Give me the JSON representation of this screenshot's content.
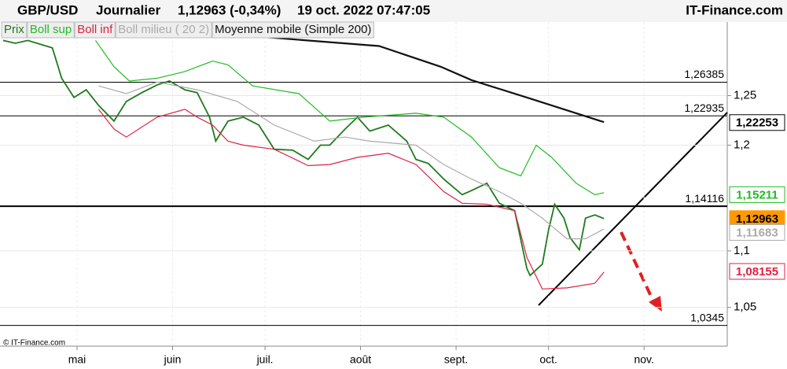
{
  "header": {
    "symbol": "GBP/USD",
    "period": "Journalier",
    "quote": "1,12963 (-0,34%)",
    "datetime": "19 oct. 2022 07:47:05",
    "site": "IT-Finance.com"
  },
  "footer": "© IT-Finance.com",
  "chart_data": {
    "type": "line",
    "log_scale": true,
    "grid": true,
    "ylim": [
      1.017,
      1.328
    ],
    "yticks": [
      {
        "value": 1.25,
        "label": "1,25"
      },
      {
        "value": 1.2,
        "label": "1,2"
      },
      {
        "value": 1.1,
        "label": "1,1"
      },
      {
        "value": 1.05,
        "label": "1,05"
      }
    ],
    "xlim": [
      96,
      332
    ],
    "xticks": [
      {
        "value": 121,
        "label": "mai"
      },
      {
        "value": 152,
        "label": "juin"
      },
      {
        "value": 182,
        "label": "juil."
      },
      {
        "value": 213,
        "label": "août"
      },
      {
        "value": 244,
        "label": "sept."
      },
      {
        "value": 274,
        "label": "oct."
      },
      {
        "value": 305,
        "label": "nov."
      }
    ],
    "series": [
      {
        "name": "Prix",
        "color": "#1e7a1e",
        "x": [
          97,
          101,
          105,
          113,
          116,
          120,
          124,
          128,
          133,
          137,
          142,
          147,
          151,
          156,
          160,
          164,
          166,
          170,
          175,
          180,
          185,
          191,
          196,
          200,
          203,
          208,
          212,
          216,
          222,
          228,
          231,
          235,
          240,
          246,
          249,
          254,
          258,
          263,
          267,
          268,
          272,
          274,
          276,
          279,
          281,
          284,
          286,
          289,
          292
        ],
        "values": [
          1.308,
          1.305,
          1.308,
          1.3,
          1.268,
          1.248,
          1.256,
          1.24,
          1.224,
          1.244,
          1.253,
          1.261,
          1.265,
          1.256,
          1.253,
          1.228,
          1.204,
          1.224,
          1.228,
          1.22,
          1.196,
          1.195,
          1.186,
          1.2,
          1.2,
          1.216,
          1.228,
          1.214,
          1.22,
          1.204,
          1.186,
          1.182,
          1.167,
          1.152,
          1.156,
          1.163,
          1.144,
          1.137,
          1.084,
          1.078,
          1.088,
          1.119,
          1.143,
          1.13,
          1.112,
          1.101,
          1.13,
          1.133,
          1.12963
        ]
      },
      {
        "name": "Boll sup",
        "color": "#22bb22",
        "x": [
          127,
          133,
          138,
          147,
          156,
          165,
          170,
          178,
          193,
          203,
          214,
          231,
          240,
          249,
          258,
          265,
          270,
          275,
          283,
          289,
          292
        ],
        "values": [
          1.308,
          1.28,
          1.265,
          1.268,
          1.275,
          1.286,
          1.282,
          1.26,
          1.252,
          1.224,
          1.228,
          1.232,
          1.228,
          1.208,
          1.178,
          1.17,
          1.2,
          1.188,
          1.163,
          1.152,
          1.154
        ]
      },
      {
        "name": "Boll inf",
        "color": "#dd2244",
        "x": [
          128,
          133,
          137,
          147,
          156,
          160,
          165,
          170,
          175,
          185,
          196,
          203,
          212,
          222,
          231,
          240,
          246,
          254,
          263,
          267,
          272,
          280,
          289,
          292
        ],
        "values": [
          1.236,
          1.216,
          1.208,
          1.228,
          1.236,
          1.228,
          1.22,
          1.204,
          1.2,
          1.196,
          1.18,
          1.181,
          1.188,
          1.192,
          1.181,
          1.155,
          1.144,
          1.143,
          1.137,
          1.094,
          1.066,
          1.067,
          1.071,
          1.081
        ]
      },
      {
        "name": "Boll milieu ( 20 2)",
        "color": "#aaaaaa",
        "x": [
          128,
          137,
          147,
          160,
          173,
          185,
          198,
          208,
          216,
          231,
          240,
          249,
          258,
          265,
          272,
          280,
          286,
          292
        ],
        "values": [
          1.26,
          1.252,
          1.264,
          1.256,
          1.244,
          1.22,
          1.204,
          1.208,
          1.204,
          1.2,
          1.181,
          1.167,
          1.155,
          1.144,
          1.13,
          1.111,
          1.111,
          1.12
        ]
      },
      {
        "name": "Moyenne mobile (Simple 200)",
        "color": "#111111",
        "x": [
          173,
          219,
          239,
          249,
          270,
          292
        ],
        "values": [
          1.314,
          1.302,
          1.28,
          1.266,
          1.245,
          1.223
        ]
      }
    ],
    "levels": [
      {
        "value": 1.26385,
        "label": "1,26385"
      },
      {
        "value": 1.22935,
        "label": "1,22935"
      },
      {
        "value": 1.14116,
        "label": "1,14116"
      },
      {
        "value": 1.0345,
        "label": "1,0345"
      }
    ],
    "last_values": [
      {
        "value": 1.22253,
        "label": "1,22253",
        "color": "#000000"
      },
      {
        "value": 1.15211,
        "label": "1,15211",
        "color": "#22bb22"
      },
      {
        "value": 1.12963,
        "label": "1,12963",
        "color": "#ff9900"
      },
      {
        "value": 1.11683,
        "label": "1,11683",
        "color": "#aaaaaa"
      },
      {
        "value": 1.08155,
        "label": "1,08155",
        "color": "#dd2244"
      }
    ]
  }
}
